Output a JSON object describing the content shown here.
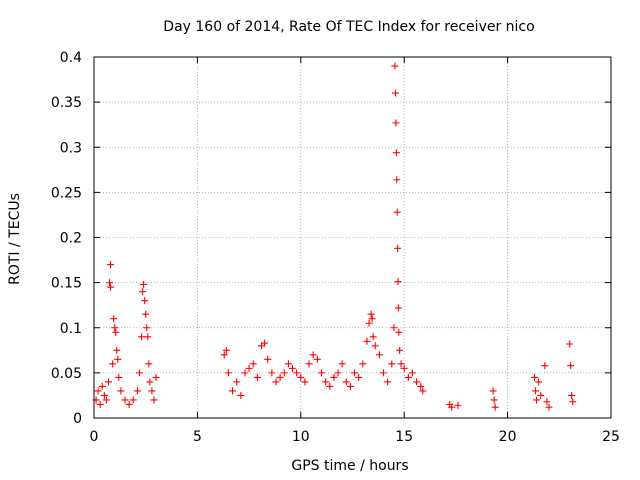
{
  "chart_data": {
    "type": "scatter",
    "title": "Day 160 of 2014, Rate Of TEC Index for receiver nico",
    "xlabel": "GPS time / hours",
    "ylabel": "ROTI / TECUs",
    "xlim": [
      0,
      25
    ],
    "ylim": [
      0,
      0.4
    ],
    "xticks": [
      0,
      5,
      10,
      15,
      20,
      25
    ],
    "xtick_labels": [
      "0",
      "5",
      "10",
      "15",
      "20",
      "25"
    ],
    "yticks": [
      0,
      0.05,
      0.1,
      0.15,
      0.2,
      0.25,
      0.3,
      0.35,
      0.4
    ],
    "ytick_labels": [
      "0",
      "0.05",
      "0.1",
      "0.15",
      "0.2",
      "0.25",
      "0.3",
      "0.35",
      "0.4"
    ],
    "grid": true,
    "marker": "+",
    "marker_color": "#ff0000",
    "series": [
      {
        "name": "ROTI",
        "points": [
          [
            0.1,
            0.02
          ],
          [
            0.2,
            0.03
          ],
          [
            0.3,
            0.015
          ],
          [
            0.4,
            0.035
          ],
          [
            0.5,
            0.025
          ],
          [
            0.6,
            0.02
          ],
          [
            0.7,
            0.04
          ],
          [
            0.75,
            0.15
          ],
          [
            0.8,
            0.17
          ],
          [
            0.8,
            0.145
          ],
          [
            0.9,
            0.06
          ],
          [
            0.95,
            0.11
          ],
          [
            1.0,
            0.1
          ],
          [
            1.05,
            0.095
          ],
          [
            1.1,
            0.075
          ],
          [
            1.15,
            0.065
          ],
          [
            1.2,
            0.045
          ],
          [
            1.3,
            0.03
          ],
          [
            1.5,
            0.02
          ],
          [
            1.7,
            0.015
          ],
          [
            1.9,
            0.02
          ],
          [
            2.1,
            0.03
          ],
          [
            2.2,
            0.05
          ],
          [
            2.3,
            0.09
          ],
          [
            2.35,
            0.14
          ],
          [
            2.4,
            0.148
          ],
          [
            2.45,
            0.13
          ],
          [
            2.5,
            0.115
          ],
          [
            2.55,
            0.1
          ],
          [
            2.6,
            0.09
          ],
          [
            2.65,
            0.06
          ],
          [
            2.7,
            0.04
          ],
          [
            2.8,
            0.03
          ],
          [
            2.9,
            0.02
          ],
          [
            3.0,
            0.045
          ],
          [
            6.3,
            0.07
          ],
          [
            6.4,
            0.075
          ],
          [
            6.5,
            0.05
          ],
          [
            6.7,
            0.03
          ],
          [
            6.9,
            0.04
          ],
          [
            7.1,
            0.025
          ],
          [
            7.3,
            0.05
          ],
          [
            7.5,
            0.055
          ],
          [
            7.7,
            0.06
          ],
          [
            7.9,
            0.045
          ],
          [
            8.1,
            0.08
          ],
          [
            8.25,
            0.083
          ],
          [
            8.4,
            0.065
          ],
          [
            8.6,
            0.05
          ],
          [
            8.8,
            0.04
          ],
          [
            9.0,
            0.045
          ],
          [
            9.2,
            0.05
          ],
          [
            9.4,
            0.06
          ],
          [
            9.6,
            0.055
          ],
          [
            9.8,
            0.05
          ],
          [
            10.0,
            0.045
          ],
          [
            10.2,
            0.04
          ],
          [
            10.4,
            0.06
          ],
          [
            10.6,
            0.07
          ],
          [
            10.8,
            0.065
          ],
          [
            11.0,
            0.05
          ],
          [
            11.2,
            0.04
          ],
          [
            11.4,
            0.035
          ],
          [
            11.6,
            0.045
          ],
          [
            11.8,
            0.05
          ],
          [
            12.0,
            0.06
          ],
          [
            12.2,
            0.04
          ],
          [
            12.4,
            0.035
          ],
          [
            12.6,
            0.05
          ],
          [
            12.8,
            0.045
          ],
          [
            13.0,
            0.06
          ],
          [
            13.2,
            0.085
          ],
          [
            13.3,
            0.105
          ],
          [
            13.4,
            0.115
          ],
          [
            13.45,
            0.11
          ],
          [
            13.5,
            0.09
          ],
          [
            13.6,
            0.08
          ],
          [
            13.8,
            0.07
          ],
          [
            14.0,
            0.05
          ],
          [
            14.2,
            0.04
          ],
          [
            14.4,
            0.06
          ],
          [
            14.5,
            0.1
          ],
          [
            14.55,
            0.39
          ],
          [
            14.58,
            0.36
          ],
          [
            14.6,
            0.327
          ],
          [
            14.62,
            0.294
          ],
          [
            14.64,
            0.264
          ],
          [
            14.66,
            0.228
          ],
          [
            14.68,
            0.188
          ],
          [
            14.7,
            0.151
          ],
          [
            14.72,
            0.122
          ],
          [
            14.74,
            0.095
          ],
          [
            14.78,
            0.075
          ],
          [
            14.85,
            0.06
          ],
          [
            15.0,
            0.055
          ],
          [
            15.2,
            0.045
          ],
          [
            15.4,
            0.05
          ],
          [
            15.6,
            0.04
          ],
          [
            15.8,
            0.035
          ],
          [
            15.9,
            0.03
          ],
          [
            17.2,
            0.015
          ],
          [
            17.3,
            0.012
          ],
          [
            17.6,
            0.014
          ],
          [
            19.3,
            0.03
          ],
          [
            19.35,
            0.02
          ],
          [
            19.4,
            0.012
          ],
          [
            21.3,
            0.045
          ],
          [
            21.35,
            0.03
          ],
          [
            21.4,
            0.02
          ],
          [
            21.5,
            0.04
          ],
          [
            21.6,
            0.025
          ],
          [
            21.8,
            0.058
          ],
          [
            21.9,
            0.018
          ],
          [
            22.0,
            0.012
          ],
          [
            23.0,
            0.082
          ],
          [
            23.05,
            0.058
          ],
          [
            23.1,
            0.025
          ],
          [
            23.15,
            0.018
          ]
        ]
      }
    ]
  }
}
